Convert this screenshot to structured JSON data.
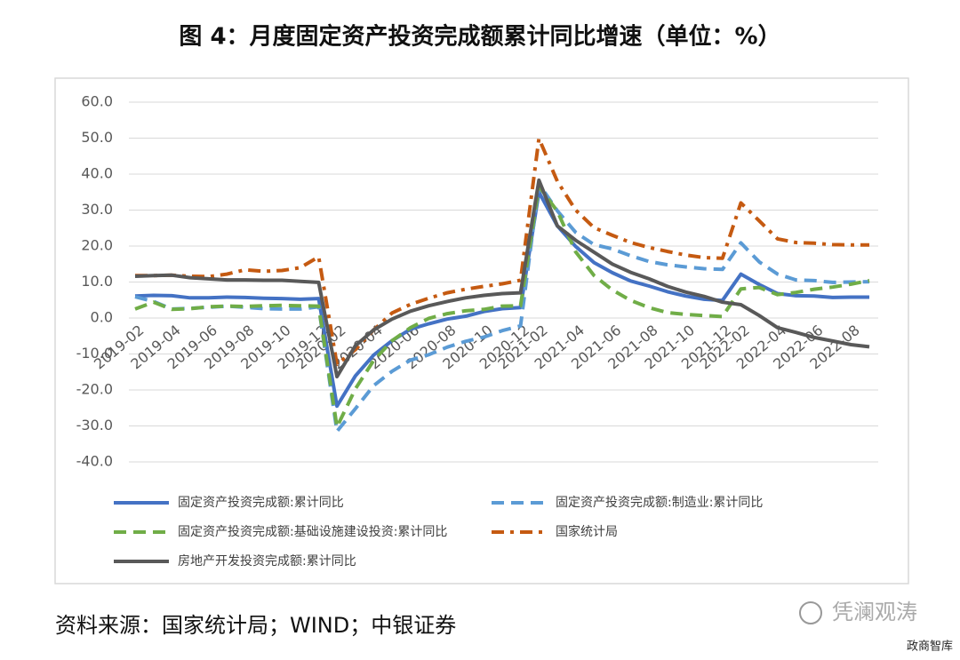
{
  "chart_data": {
    "type": "line",
    "title": "图 4：月度固定资产投资完成额累计同比增速（单位：%）",
    "source": "资料来源：国家统计局；WIND；中银证券",
    "watermark": "凭澜观涛",
    "watermark_sub": "政商智库",
    "categories": [
      "2019-02",
      null,
      "2019-04",
      null,
      "2019-06",
      null,
      "2019-08",
      null,
      "2019-10",
      null,
      "2019-12",
      "2020-02",
      null,
      "2020-04",
      null,
      "2020-06",
      null,
      "2020-08",
      null,
      "2020-10",
      null,
      "2020-12",
      "2021-02",
      null,
      "2021-04",
      null,
      "2021-06",
      null,
      "2021-08",
      null,
      "2021-10",
      null,
      "2021-12",
      "2022-02",
      null,
      "2022-04",
      null,
      "2022-06",
      null,
      "2022-08",
      null
    ],
    "ylim": [
      -40,
      60
    ],
    "yticks": [
      {
        "value": 60,
        "label": "60.0"
      },
      {
        "value": 50,
        "label": "50.0"
      },
      {
        "value": 40,
        "label": "40.0"
      },
      {
        "value": 30,
        "label": "30.0"
      },
      {
        "value": 20,
        "label": "20.0"
      },
      {
        "value": 10,
        "label": "10.0"
      },
      {
        "value": 0,
        "label": "0.0"
      },
      {
        "value": -10,
        "label": "-10.0"
      },
      {
        "value": -20,
        "label": "-20.0"
      },
      {
        "value": -30,
        "label": "-30.0"
      },
      {
        "value": -40,
        "label": "-40.0"
      }
    ],
    "grid": true,
    "legend": "bottom",
    "series": [
      {
        "name": "固定资产投资完成额:累计同比",
        "color": "#4472c4",
        "dash": "solid",
        "values": [
          6.1,
          6.3,
          6.2,
          5.6,
          5.6,
          5.8,
          5.7,
          5.5,
          5.4,
          5.2,
          5.4,
          -24.5,
          -16.1,
          -10.3,
          -6.3,
          -3.1,
          -1.6,
          -0.3,
          0.5,
          1.8,
          2.6,
          2.9,
          35.0,
          25.6,
          19.9,
          15.4,
          12.6,
          10.3,
          8.9,
          7.3,
          6.1,
          5.2,
          4.9,
          12.2,
          9.3,
          6.8,
          6.2,
          6.1,
          5.7,
          5.8,
          5.8
        ]
      },
      {
        "name": "固定资产投资完成额:制造业:累计同比",
        "color": "#5b9bd5",
        "dash": "dashed",
        "values": [
          5.9,
          4.6,
          2.5,
          2.7,
          3.0,
          3.3,
          3.0,
          2.6,
          2.5,
          2.5,
          3.1,
          -31.5,
          -25.2,
          -18.8,
          -14.8,
          -11.7,
          -10.2,
          -8.1,
          -6.5,
          -5.3,
          -3.5,
          -2.2,
          37.3,
          29.8,
          23.8,
          20.4,
          19.2,
          17.3,
          15.7,
          14.8,
          14.2,
          13.7,
          13.5,
          20.9,
          15.6,
          12.2,
          10.6,
          10.4,
          9.9,
          10.0,
          10.1
        ]
      },
      {
        "name": "固定资产投资完成额:基础设施建设投资:累计同比",
        "color": "#70ad47",
        "dash": "dashed",
        "values": [
          2.5,
          4.4,
          2.4,
          2.6,
          3.1,
          3.3,
          3.2,
          3.4,
          3.5,
          3.4,
          3.3,
          -30.3,
          -19.7,
          -11.8,
          -6.3,
          -2.7,
          -0.1,
          1.2,
          2.0,
          2.4,
          3.3,
          3.4,
          36.6,
          29.7,
          18.4,
          11.8,
          7.8,
          4.9,
          2.9,
          1.5,
          1.0,
          0.7,
          0.4,
          8.1,
          8.5,
          6.5,
          7.1,
          8.0,
          8.6,
          9.4,
          10.4
        ]
      },
      {
        "name": "国家统计局",
        "color": "#c55a11",
        "dash": "dashdot",
        "values": [
          11.8,
          11.8,
          11.9,
          11.6,
          11.5,
          12.2,
          13.4,
          13.0,
          13.2,
          14.0,
          17.0,
          -12.9,
          -8.8,
          -3.3,
          1.4,
          3.8,
          5.5,
          7.0,
          8.0,
          8.8,
          9.5,
          10.5,
          49.9,
          38.0,
          30.0,
          25.1,
          23.0,
          21.0,
          19.6,
          18.5,
          17.5,
          16.8,
          16.6,
          32.0,
          27.0,
          22.0,
          21.0,
          20.8,
          20.4,
          20.3,
          20.3
        ]
      },
      {
        "name": "房地产开发投资完成额:累计同比",
        "color": "#595959",
        "dash": "solid",
        "values": [
          11.6,
          11.8,
          11.9,
          11.2,
          10.9,
          10.6,
          10.6,
          10.5,
          10.5,
          10.2,
          9.9,
          -16.3,
          -7.7,
          -3.3,
          -0.3,
          1.9,
          3.4,
          4.6,
          5.6,
          6.3,
          6.8,
          7.0,
          38.3,
          25.6,
          21.6,
          18.3,
          15.0,
          12.7,
          10.9,
          8.8,
          7.2,
          6.0,
          4.4,
          3.7,
          0.7,
          -2.7,
          -4.0,
          -5.4,
          -6.4,
          -7.4,
          -8.0
        ]
      }
    ]
  }
}
